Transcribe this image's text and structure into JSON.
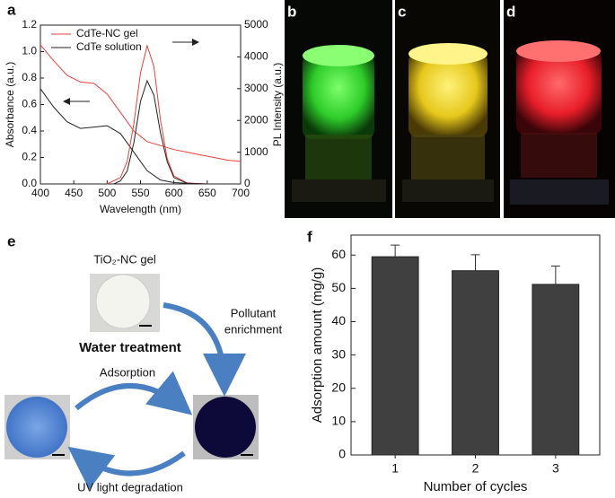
{
  "panel_labels": [
    "a",
    "b",
    "c",
    "d",
    "e",
    "f"
  ],
  "chart_data": [
    {
      "type": "line",
      "xlabel": "Wavelength (nm)",
      "ylabel": "Absorbance (a.u.)",
      "y2label": "PL Intensity (a.u.)",
      "xlim": [
        400,
        700
      ],
      "xticks": [
        400,
        450,
        500,
        550,
        600,
        650,
        700
      ],
      "ylim": [
        0,
        1.2
      ],
      "yticks": [
        {
          "value": 0,
          "label": "0.0"
        },
        0.2,
        0.4,
        0.6,
        0.8,
        {
          "value": 1,
          "label": "1.0"
        },
        1.2
      ],
      "y2lim": [
        0,
        5000
      ],
      "y2ticks": [
        0,
        1000,
        2000,
        3000,
        4000,
        5000
      ],
      "legend": "upper left",
      "series": [
        {
          "name": "CdTe-NC gel",
          "color": "#e8413c",
          "x": [
            400,
            420,
            440,
            460,
            480,
            500,
            520,
            540,
            560,
            580,
            600,
            620,
            640,
            660,
            680,
            700
          ],
          "values": [
            1.05,
            0.93,
            0.82,
            0.77,
            0.76,
            0.68,
            0.54,
            0.4,
            0.32,
            0.29,
            0.26,
            0.24,
            0.22,
            0.2,
            0.18,
            0.17
          ]
        },
        {
          "name": "CdTe solution",
          "color": "#222222",
          "x": [
            400,
            420,
            440,
            460,
            480,
            500,
            520,
            540,
            560,
            580,
            600,
            620,
            640,
            660,
            680,
            700
          ],
          "values": [
            0.72,
            0.58,
            0.47,
            0.42,
            0.43,
            0.44,
            0.38,
            0.24,
            0.1,
            0.03,
            0.01,
            0.005,
            0,
            0,
            0,
            0
          ]
        },
        {
          "color": "#e8413c",
          "axis": "y2",
          "x": [
            500,
            520,
            530,
            540,
            550,
            560,
            570,
            580,
            590,
            600,
            620,
            650
          ],
          "values": [
            0,
            200,
            700,
            1900,
            3500,
            4350,
            3700,
            2000,
            800,
            250,
            30,
            0
          ]
        },
        {
          "color": "#222222",
          "axis": "y2",
          "x": [
            510,
            520,
            530,
            540,
            550,
            560,
            570,
            580,
            590,
            600,
            620,
            650
          ],
          "values": [
            0,
            100,
            400,
            1300,
            2600,
            3250,
            2800,
            1600,
            700,
            200,
            20,
            0
          ]
        }
      ]
    },
    {
      "type": "bar",
      "xlabel": "Number of cycles",
      "ylabel": "Adsorption amount (mg/g)",
      "categories": [
        "1",
        "2",
        "3"
      ],
      "values": [
        59.5,
        55.3,
        51.2
      ],
      "errors": [
        3.5,
        4.8,
        5.5
      ],
      "color": "#404040",
      "ylim": [
        0,
        66
      ],
      "yticks": [
        0,
        10,
        20,
        30,
        40,
        50,
        60
      ]
    }
  ],
  "diagram": {
    "gel_label": "TiO₂-NC gel",
    "right_label": [
      "Pollutant",
      "enrichment"
    ],
    "center_title": "Water treatment",
    "top_arrow_label": "Adsorption",
    "bottom_arrow_label": "UV light degradation"
  }
}
